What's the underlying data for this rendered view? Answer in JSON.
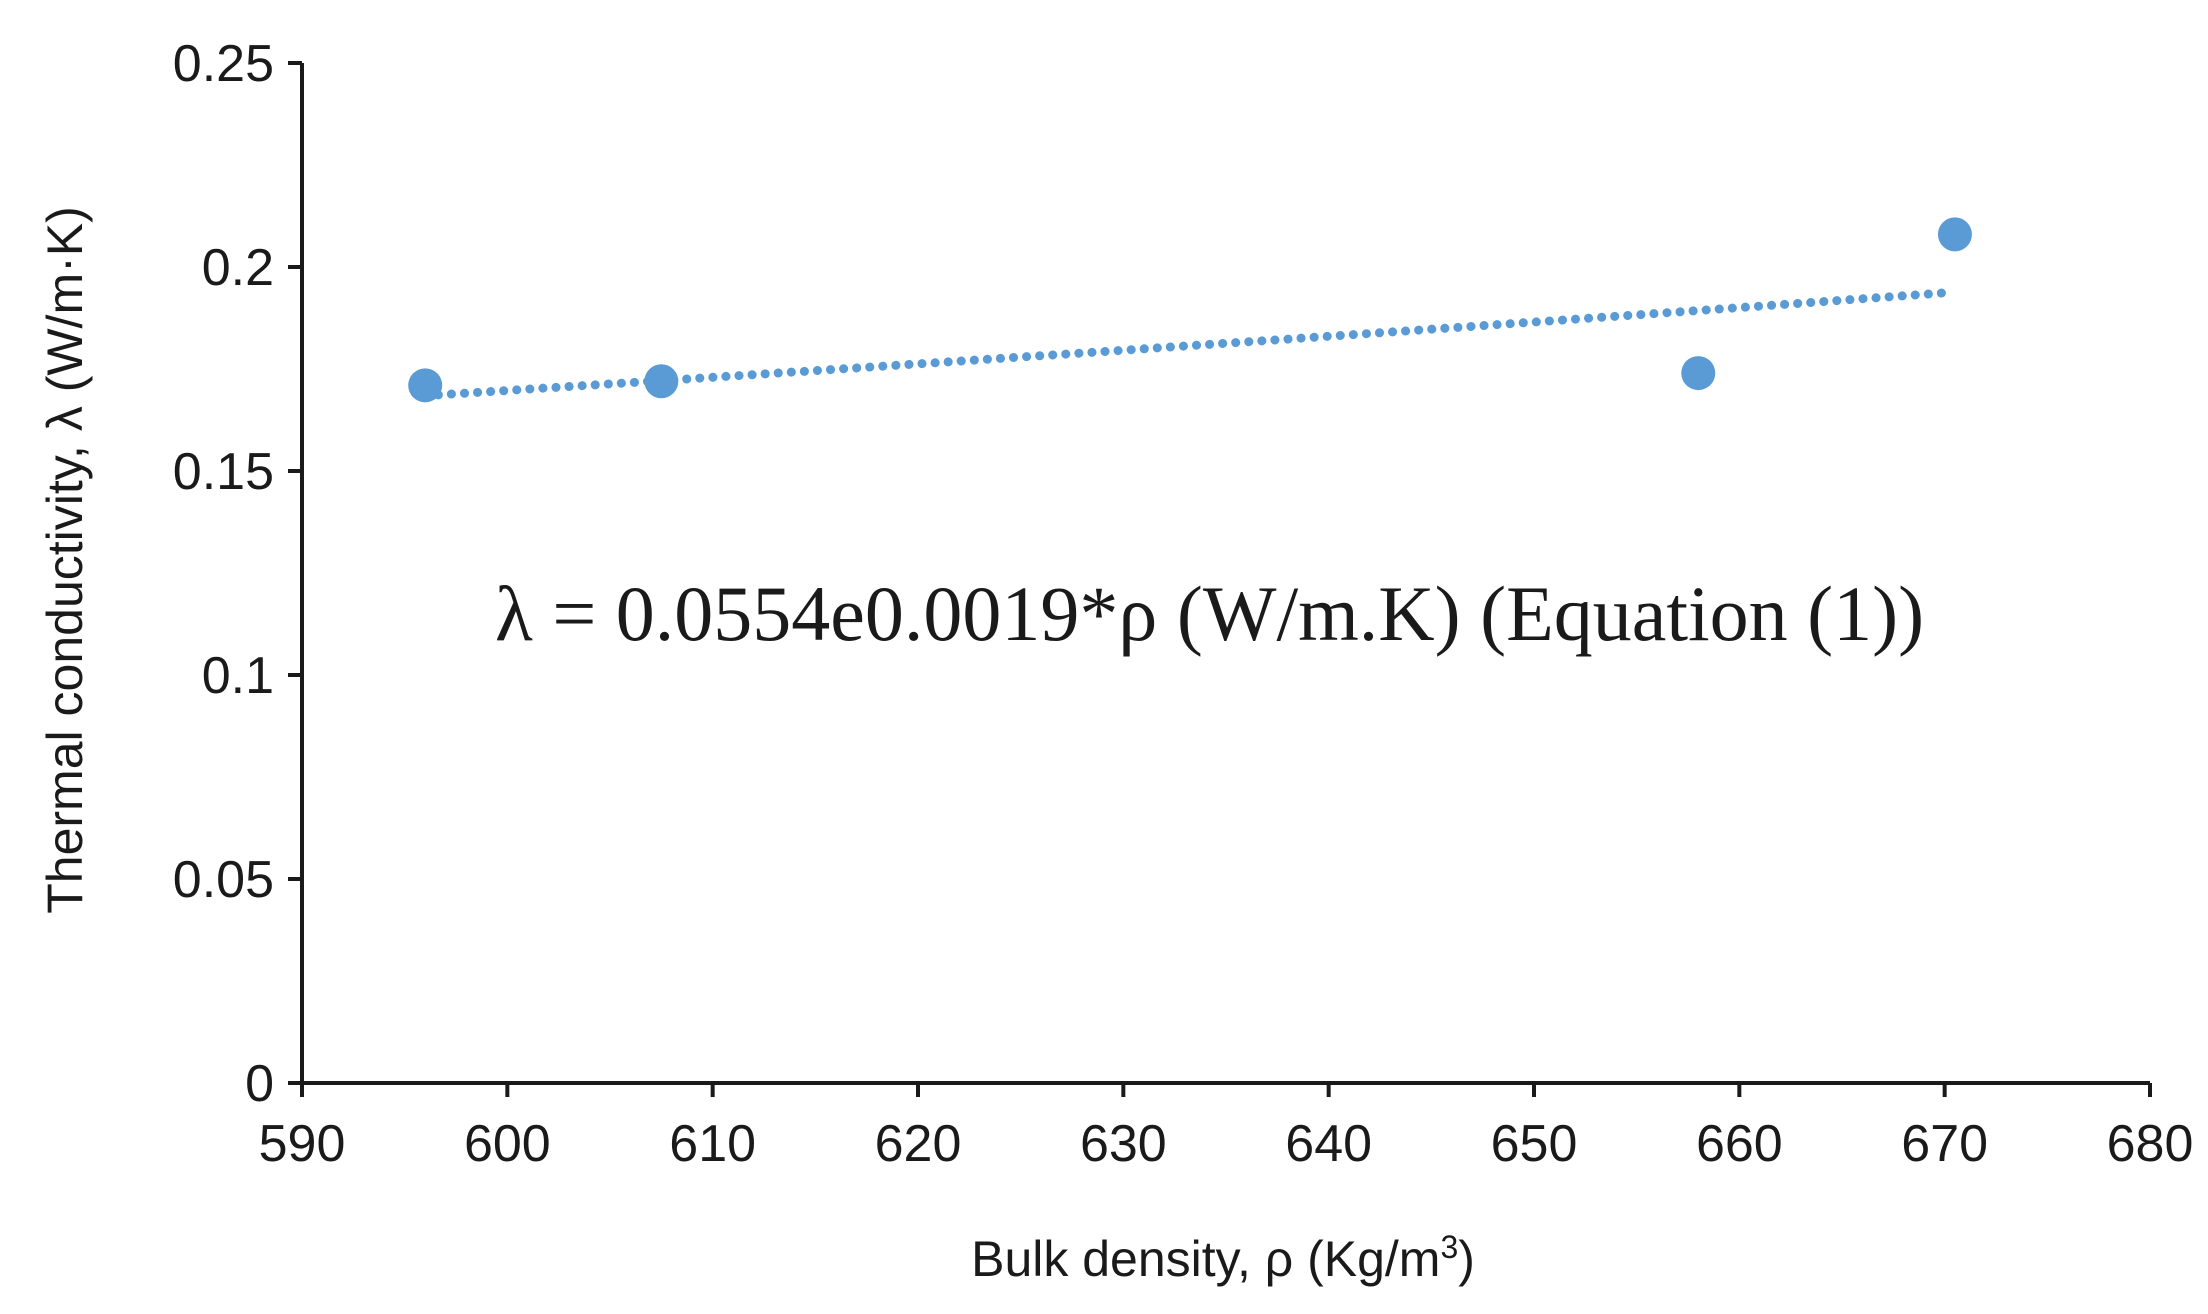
{
  "chart_data": {
    "type": "scatter",
    "xlabel": "Bulk density, ρ (Kg/m³)",
    "ylabel": "Thermal conductivity, λ (W/m·K)",
    "xlim": [
      590,
      680
    ],
    "ylim": [
      0,
      0.25
    ],
    "x_ticks": [
      590,
      600,
      610,
      620,
      630,
      640,
      650,
      660,
      670,
      680
    ],
    "y_ticks": [
      0,
      0.05,
      0.1,
      0.15,
      0.2,
      0.25
    ],
    "x_tick_labels": [
      "590",
      "600",
      "610",
      "620",
      "630",
      "640",
      "650",
      "660",
      "670",
      "680"
    ],
    "y_tick_labels": [
      "0",
      "0.05",
      "0.1",
      "0.15",
      "0.2",
      "0.25"
    ],
    "grid": false,
    "marker_color": "#5b9bd5",
    "trendline_color": "#5b9bd5",
    "trendline_style": "dotted",
    "series": [
      {
        "points": [
          {
            "x": 596,
            "y": 0.171
          },
          {
            "x": 607.5,
            "y": 0.172
          },
          {
            "x": 658,
            "y": 0.174
          },
          {
            "x": 670.5,
            "y": 0.208
          }
        ]
      }
    ],
    "trendline": {
      "type": "exponential",
      "a": 0.0554,
      "b": 0.0019,
      "x_range": [
        596,
        670
      ]
    },
    "annotations": [
      {
        "text": "λ = 0.0554e0.0019*ρ (W/m.K) (Equation (1))"
      }
    ]
  }
}
